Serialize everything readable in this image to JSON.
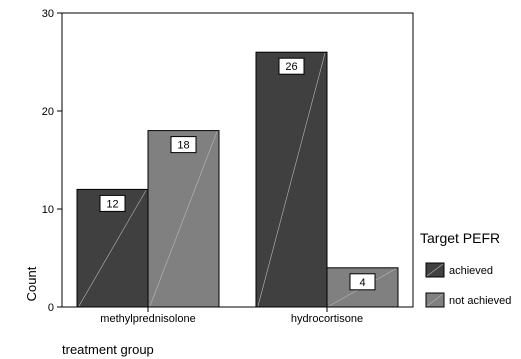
{
  "chart_data": {
    "type": "bar",
    "categories": [
      "methylprednisolone",
      "hydrocortisone"
    ],
    "series": [
      {
        "name": "achieved",
        "values": [
          12,
          26
        ],
        "color": "#404040"
      },
      {
        "name": "not achieved",
        "values": [
          18,
          4
        ],
        "color": "#808080"
      }
    ],
    "xlabel": "treatment group",
    "ylabel": "Count",
    "ylim": [
      0,
      30
    ],
    "yticks": [
      0,
      10,
      20,
      30
    ],
    "legend_title": "Target PEFR",
    "legend_position": "right",
    "data_labels": true,
    "grid": false
  }
}
